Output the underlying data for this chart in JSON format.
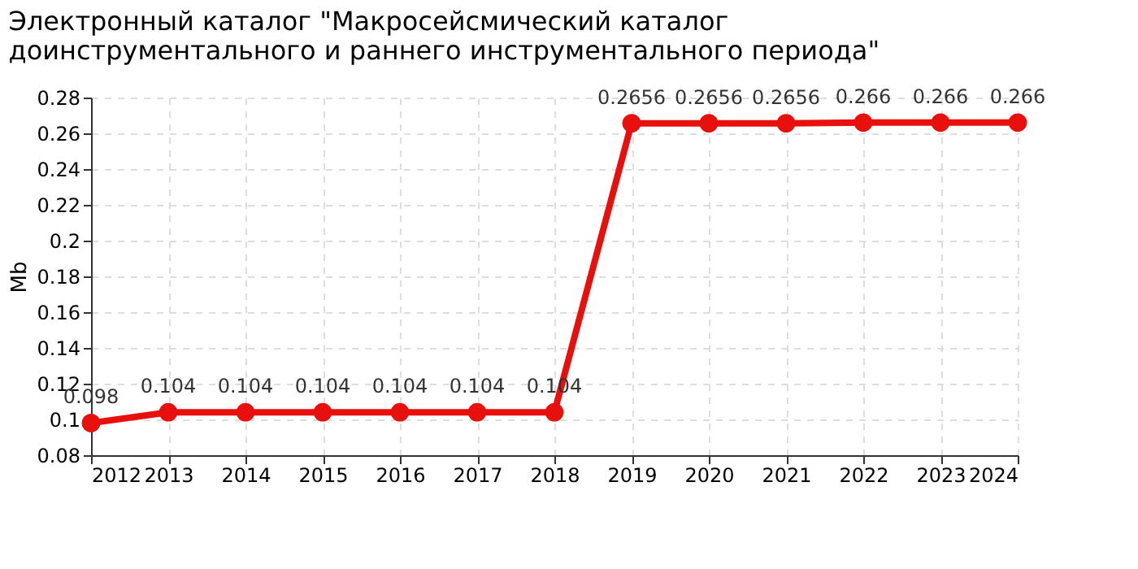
{
  "chart_data": {
    "type": "line",
    "title": [
      "Электронный каталог  \"Макросейсмический каталог",
      "доинструментального и раннего инструментального периода\""
    ],
    "ylabel": "Mb",
    "categories": [
      "2012",
      "2013",
      "2014",
      "2015",
      "2016",
      "2017",
      "2018",
      "2019",
      "2020",
      "2021",
      "2022",
      "2023",
      "2024"
    ],
    "series": [
      {
        "color": "#e8100c",
        "values": [
          0.098,
          0.104,
          0.104,
          0.104,
          0.104,
          0.104,
          0.104,
          0.2656,
          0.2656,
          0.2656,
          0.266,
          0.266,
          0.266
        ]
      }
    ],
    "ylim": [
      0.08,
      0.28
    ],
    "yticks": [
      0.08,
      0.1,
      0.12,
      0.14,
      0.16,
      0.18,
      0.2,
      0.22,
      0.24,
      0.26,
      0.28
    ],
    "grid": true,
    "marker": "circle",
    "line_style": "solid",
    "data_labels": true
  }
}
